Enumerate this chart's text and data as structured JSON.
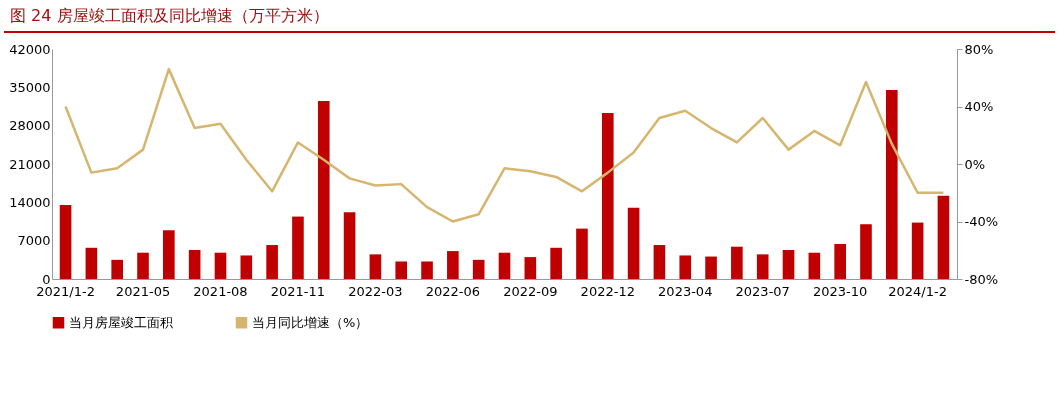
{
  "chart_data": {
    "type": "bar",
    "title": "图 24 房屋竣工面积及同比增速（万平方米）",
    "categories": [
      "2021/1-2",
      null,
      null,
      "2021-05",
      null,
      null,
      "2021-08",
      null,
      null,
      "2021-11",
      null,
      null,
      "2022-03",
      null,
      null,
      "2022-06",
      null,
      null,
      "2022-09",
      null,
      null,
      "2022-12",
      null,
      null,
      "2023-04",
      null,
      null,
      "2023-07",
      null,
      null,
      "2023-10",
      null,
      null,
      "2024/1-2",
      null
    ],
    "series": [
      {
        "name": "当月房屋竣工面积",
        "color": "#c00000",
        "values": [
          13500,
          5700,
          3500,
          4800,
          8900,
          5300,
          4800,
          4300,
          6200,
          11400,
          32500,
          12200,
          4500,
          3200,
          3200,
          5100,
          3500,
          4800,
          4000,
          5700,
          9200,
          30300,
          13000,
          6200,
          4300,
          4100,
          5900,
          4500,
          5300,
          4800,
          6400,
          10000,
          34500,
          10300,
          15200
        ]
      },
      {
        "name": "当月同比增速（%）",
        "type": "line",
        "axis": "y2",
        "color": "#d6b56f",
        "values": [
          40,
          -6,
          -3,
          10,
          66,
          25,
          28,
          3,
          -19,
          15,
          3,
          -10,
          -15,
          -14,
          -30,
          -40,
          -35,
          -3,
          -5,
          -9,
          -19,
          -6,
          8,
          32,
          37,
          25,
          15,
          32,
          10,
          23,
          13,
          57,
          14,
          -20,
          -20
        ]
      }
    ],
    "ylim": [
      0,
      42000
    ],
    "yticks": [
      0,
      7000,
      14000,
      21000,
      28000,
      35000,
      42000
    ],
    "y2lim": [
      -80,
      80
    ],
    "y2ticks": [
      {
        "value": -80,
        "label": "-80%"
      },
      {
        "value": -40,
        "label": "-40%"
      },
      {
        "value": 0,
        "label": "0%"
      },
      {
        "value": 40,
        "label": "40%"
      },
      {
        "value": 80,
        "label": "80%"
      }
    ],
    "legend": "bottom",
    "grid": false
  }
}
